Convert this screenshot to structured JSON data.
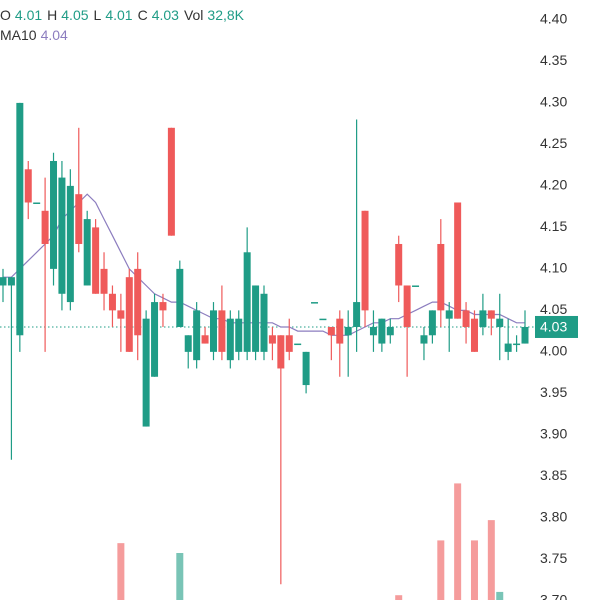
{
  "chart_data": {
    "type": "candlestick",
    "legend": [
      {
        "label": "O",
        "value": 4.01
      },
      {
        "label": "H",
        "value": 4.05
      },
      {
        "label": "L",
        "value": 4.01
      },
      {
        "label": "C",
        "value": 4.03
      },
      {
        "label": "Vol",
        "value": "32,8K"
      }
    ],
    "ma_label": "MA10",
    "ma_value": 4.04,
    "last_price": 4.03,
    "up_color": "#1f9c86",
    "down_color": "#ef5a5a",
    "ma_color": "#8c7dbf",
    "ylim": [
      3.701,
      4.424
    ],
    "yticks": [
      {
        "value": 4.4,
        "label": "4.40"
      },
      4.35,
      {
        "value": 4.3,
        "label": "4.30"
      },
      4.25,
      {
        "value": 4.2,
        "label": "4.20"
      },
      4.15,
      {
        "value": 4.1,
        "label": "4.10"
      },
      4.05,
      {
        "value": 4.0,
        "label": "4.00"
      },
      3.95,
      {
        "value": 3.9,
        "label": "3.90"
      },
      3.85,
      {
        "value": 3.8,
        "label": "3.80"
      },
      3.75,
      {
        "value": 3.7,
        "label": "3.70"
      }
    ],
    "volume_ylim": [
      0,
      250
    ],
    "open": [
      4.08,
      4.08,
      4.02,
      4.22,
      4.18,
      4.17,
      4.1,
      4.07,
      4.06,
      4.19,
      4.08,
      4.15,
      4.1,
      4.07,
      4.05,
      4.09,
      4.1,
      3.91,
      3.97,
      4.06,
      4.27,
      4.03,
      4.0,
      3.99,
      4.02,
      4.0,
      4.05,
      3.99,
      4.0,
      4.0,
      4.0,
      4.0,
      4.02,
      4.02,
      4.02,
      4.01,
      3.96,
      4.06,
      4.04,
      4.03,
      4.04,
      4.02,
      4.03,
      4.17,
      4.02,
      4.01,
      4.02,
      4.13,
      4.08,
      4.08,
      4.01,
      4.02,
      4.13,
      4.04,
      4.18,
      4.05,
      4.04,
      4.03,
      4.05,
      4.03,
      4.0,
      4.01,
      4.01
    ],
    "high": [
      4.1,
      4.09,
      4.3,
      4.23,
      4.18,
      4.21,
      4.24,
      4.23,
      4.22,
      4.27,
      4.17,
      4.16,
      4.12,
      4.08,
      4.07,
      4.1,
      4.12,
      4.05,
      4.07,
      4.07,
      4.27,
      4.11,
      4.02,
      4.06,
      4.03,
      4.06,
      4.08,
      4.05,
      4.05,
      4.15,
      4.08,
      4.08,
      4.03,
      4.02,
      4.04,
      4.01,
      4.0,
      4.06,
      4.04,
      4.03,
      4.05,
      4.05,
      4.28,
      4.17,
      4.05,
      4.04,
      4.04,
      4.14,
      4.08,
      4.08,
      4.03,
      4.05,
      4.16,
      4.06,
      4.18,
      4.06,
      4.05,
      4.07,
      4.05,
      4.07,
      4.04,
      4.02,
      4.05
    ],
    "low": [
      4.06,
      3.87,
      4.0,
      4.16,
      4.18,
      4.0,
      4.08,
      4.05,
      4.05,
      4.12,
      4.08,
      4.07,
      4.05,
      4.03,
      4.0,
      4.0,
      3.99,
      3.91,
      3.97,
      4.03,
      4.14,
      4.03,
      3.98,
      3.98,
      4.01,
      3.99,
      3.99,
      3.98,
      3.99,
      3.99,
      3.99,
      3.99,
      3.99,
      3.72,
      3.99,
      4.01,
      3.95,
      4.06,
      4.04,
      3.99,
      3.97,
      3.97,
      4.0,
      4.03,
      4.0,
      4.0,
      4.01,
      4.06,
      3.97,
      4.08,
      3.99,
      4.01,
      4.03,
      4.0,
      4.04,
      4.01,
      4.0,
      4.02,
      4.02,
      3.99,
      3.99,
      4.0,
      4.01
    ],
    "close": [
      4.09,
      4.09,
      4.3,
      4.18,
      4.18,
      4.13,
      4.23,
      4.21,
      4.2,
      4.13,
      4.16,
      4.07,
      4.07,
      4.05,
      4.04,
      4.0,
      4.02,
      4.04,
      4.06,
      4.05,
      4.14,
      4.1,
      4.02,
      4.05,
      4.01,
      4.05,
      4.0,
      4.04,
      4.04,
      4.12,
      4.08,
      4.07,
      4.01,
      3.98,
      4.0,
      4.01,
      4.0,
      4.06,
      4.04,
      4.02,
      4.01,
      4.03,
      4.06,
      4.05,
      4.03,
      4.04,
      4.03,
      4.08,
      4.03,
      4.08,
      4.02,
      4.05,
      4.05,
      4.05,
      4.04,
      4.03,
      4.0,
      4.05,
      4.04,
      4.04,
      4.01,
      4.01,
      4.03
    ],
    "volume": [
      10,
      10,
      10,
      10,
      10,
      10,
      10,
      10,
      10,
      10,
      10,
      10,
      10,
      10,
      122,
      10,
      10,
      10,
      10,
      10,
      10,
      104,
      10,
      10,
      10,
      10,
      10,
      10,
      10,
      10,
      10,
      10,
      10,
      10,
      10,
      10,
      10,
      10,
      10,
      10,
      10,
      10,
      10,
      10,
      10,
      10,
      10,
      27,
      10,
      10,
      10,
      10,
      127,
      10,
      231,
      10,
      127,
      10,
      164,
      33,
      10,
      10,
      10
    ],
    "ma10": [
      4.09,
      4.09,
      4.1,
      4.11,
      4.12,
      4.13,
      4.14,
      4.16,
      4.17,
      4.18,
      4.19,
      4.18,
      4.16,
      4.14,
      4.12,
      4.1,
      4.09,
      4.08,
      4.07,
      4.065,
      4.06,
      4.06,
      4.055,
      4.05,
      4.045,
      4.04,
      4.04,
      4.035,
      4.035,
      4.035,
      4.035,
      4.035,
      4.035,
      4.03,
      4.03,
      4.025,
      4.025,
      4.025,
      4.025,
      4.02,
      4.02,
      4.02,
      4.025,
      4.03,
      4.035,
      4.035,
      4.04,
      4.04,
      4.045,
      4.05,
      4.055,
      4.06,
      4.06,
      4.055,
      4.05,
      4.05,
      4.045,
      4.045,
      4.045,
      4.045,
      4.04,
      4.035,
      4.035
    ]
  }
}
